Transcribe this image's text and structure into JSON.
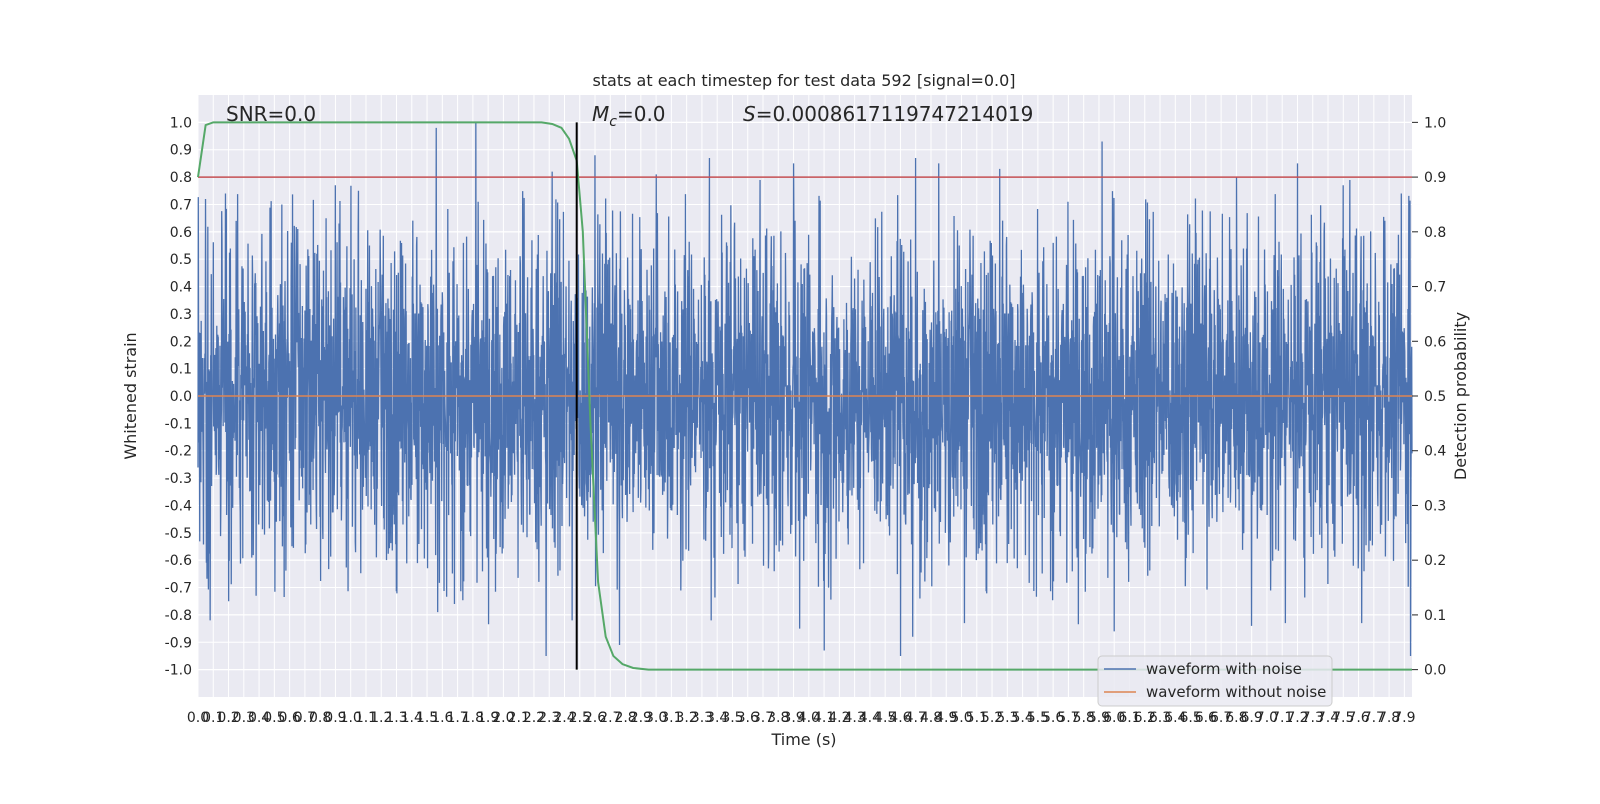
{
  "chart_data": {
    "type": "line",
    "title": "stats at each timestep for test data 592 [signal=0.0]",
    "xlabel": "Time (s)",
    "ylabel": "Whitened strain",
    "ylabel_right": "Detection probability",
    "xlim": [
      0.0,
      7.95
    ],
    "ylim": [
      -1.1,
      1.1
    ],
    "ylim_right": [
      -0.05,
      1.05
    ],
    "x_ticks": [
      "0.0",
      "0.1",
      "0.2",
      "0.3",
      "0.4",
      "0.5",
      "0.6",
      "0.7",
      "0.8",
      "0.9",
      "1.0",
      "1.1",
      "1.2",
      "1.3",
      "1.4",
      "1.5",
      "1.6",
      "1.7",
      "1.8",
      "1.9",
      "2.0",
      "2.1",
      "2.2",
      "2.3",
      "2.4",
      "2.5",
      "2.6",
      "2.7",
      "2.8",
      "2.9",
      "3.0",
      "3.1",
      "3.2",
      "3.3",
      "3.4",
      "3.5",
      "3.6",
      "3.7",
      "3.8",
      "3.9",
      "4.0",
      "4.1",
      "4.2",
      "4.3",
      "4.4",
      "4.5",
      "4.6",
      "4.7",
      "4.8",
      "4.9",
      "5.0",
      "5.1",
      "5.2",
      "5.3",
      "5.4",
      "5.5",
      "5.6",
      "5.7",
      "5.8",
      "5.9",
      "6.0",
      "6.1",
      "6.2",
      "6.3",
      "6.4",
      "6.5",
      "6.6",
      "6.7",
      "6.8",
      "6.9",
      "7.0",
      "7.1",
      "7.2",
      "7.3",
      "7.4",
      "7.5",
      "7.6",
      "7.7",
      "7.8",
      "7.9"
    ],
    "y_ticks": [
      "-1.0",
      "-0.9",
      "-0.8",
      "-0.7",
      "-0.6",
      "-0.5",
      "-0.4",
      "-0.3",
      "-0.2",
      "-0.1",
      "0.0",
      "0.1",
      "0.2",
      "0.3",
      "0.4",
      "0.5",
      "0.6",
      "0.7",
      "0.8",
      "0.9",
      "1.0"
    ],
    "y_ticks_right": [
      "0.0",
      "0.1",
      "0.2",
      "0.3",
      "0.4",
      "0.5",
      "0.6",
      "0.7",
      "0.8",
      "0.9",
      "1.0"
    ],
    "threshold": 0.9,
    "vline_x": 2.48,
    "annotations": {
      "snr": "SNR=0.0",
      "mc_symbol": "M",
      "mc_sub": "c",
      "mc_value": "=0.0",
      "s_symbol": "S",
      "s_value": "=0.0008617119747214019"
    },
    "series": [
      {
        "name": "waveform with noise",
        "color": "#4c72b0",
        "note": "dense noise, amplitude mostly within ±0.45 with spikes up to ±0.98",
        "peaks": [
          [
            0.05,
            0.72
          ],
          [
            0.18,
            0.74
          ],
          [
            0.25,
            0.64
          ],
          [
            0.55,
            0.7
          ],
          [
            0.9,
            0.77
          ],
          [
            1.05,
            0.75
          ],
          [
            1.56,
            0.98
          ],
          [
            1.82,
            1.0
          ],
          [
            2.32,
            0.82
          ],
          [
            2.6,
            0.88
          ],
          [
            3.0,
            0.81
          ],
          [
            3.35,
            0.87
          ],
          [
            3.9,
            0.85
          ],
          [
            4.7,
            0.87
          ],
          [
            4.85,
            0.85
          ],
          [
            5.25,
            0.83
          ],
          [
            5.92,
            0.93
          ],
          [
            6.8,
            0.8
          ],
          [
            7.2,
            0.85
          ],
          [
            7.5,
            0.77
          ],
          [
            7.88,
            0.74
          ]
        ],
        "troughs": [
          [
            0.08,
            -0.82
          ],
          [
            0.2,
            -0.75
          ],
          [
            0.38,
            -0.73
          ],
          [
            1.57,
            -0.79
          ],
          [
            1.68,
            -0.76
          ],
          [
            2.28,
            -0.95
          ],
          [
            2.45,
            -0.82
          ],
          [
            2.76,
            -0.91
          ],
          [
            3.36,
            -0.82
          ],
          [
            3.94,
            -0.85
          ],
          [
            4.1,
            -0.93
          ],
          [
            4.6,
            -0.95
          ],
          [
            4.68,
            -0.88
          ],
          [
            5.02,
            -0.83
          ],
          [
            6.0,
            -0.86
          ],
          [
            6.9,
            -0.84
          ],
          [
            7.12,
            -0.83
          ],
          [
            7.62,
            -0.83
          ],
          [
            7.94,
            -0.95
          ]
        ]
      },
      {
        "name": "waveform without noise",
        "color": "#dd8452",
        "points": [
          [
            0.0,
            0.0
          ],
          [
            7.95,
            0.0
          ]
        ]
      },
      {
        "name": "detection probability",
        "axis": "right",
        "color": "#55a868",
        "points": [
          [
            0.0,
            0.9
          ],
          [
            0.05,
            0.995
          ],
          [
            0.1,
            1.0
          ],
          [
            0.3,
            1.0
          ],
          [
            1.0,
            1.0
          ],
          [
            2.0,
            1.0
          ],
          [
            2.25,
            1.0
          ],
          [
            2.32,
            0.997
          ],
          [
            2.38,
            0.99
          ],
          [
            2.43,
            0.97
          ],
          [
            2.48,
            0.93
          ],
          [
            2.52,
            0.8
          ],
          [
            2.57,
            0.45
          ],
          [
            2.62,
            0.16
          ],
          [
            2.67,
            0.06
          ],
          [
            2.72,
            0.025
          ],
          [
            2.78,
            0.01
          ],
          [
            2.85,
            0.003
          ],
          [
            2.95,
            0.0
          ],
          [
            7.95,
            0.0
          ]
        ]
      }
    ]
  }
}
